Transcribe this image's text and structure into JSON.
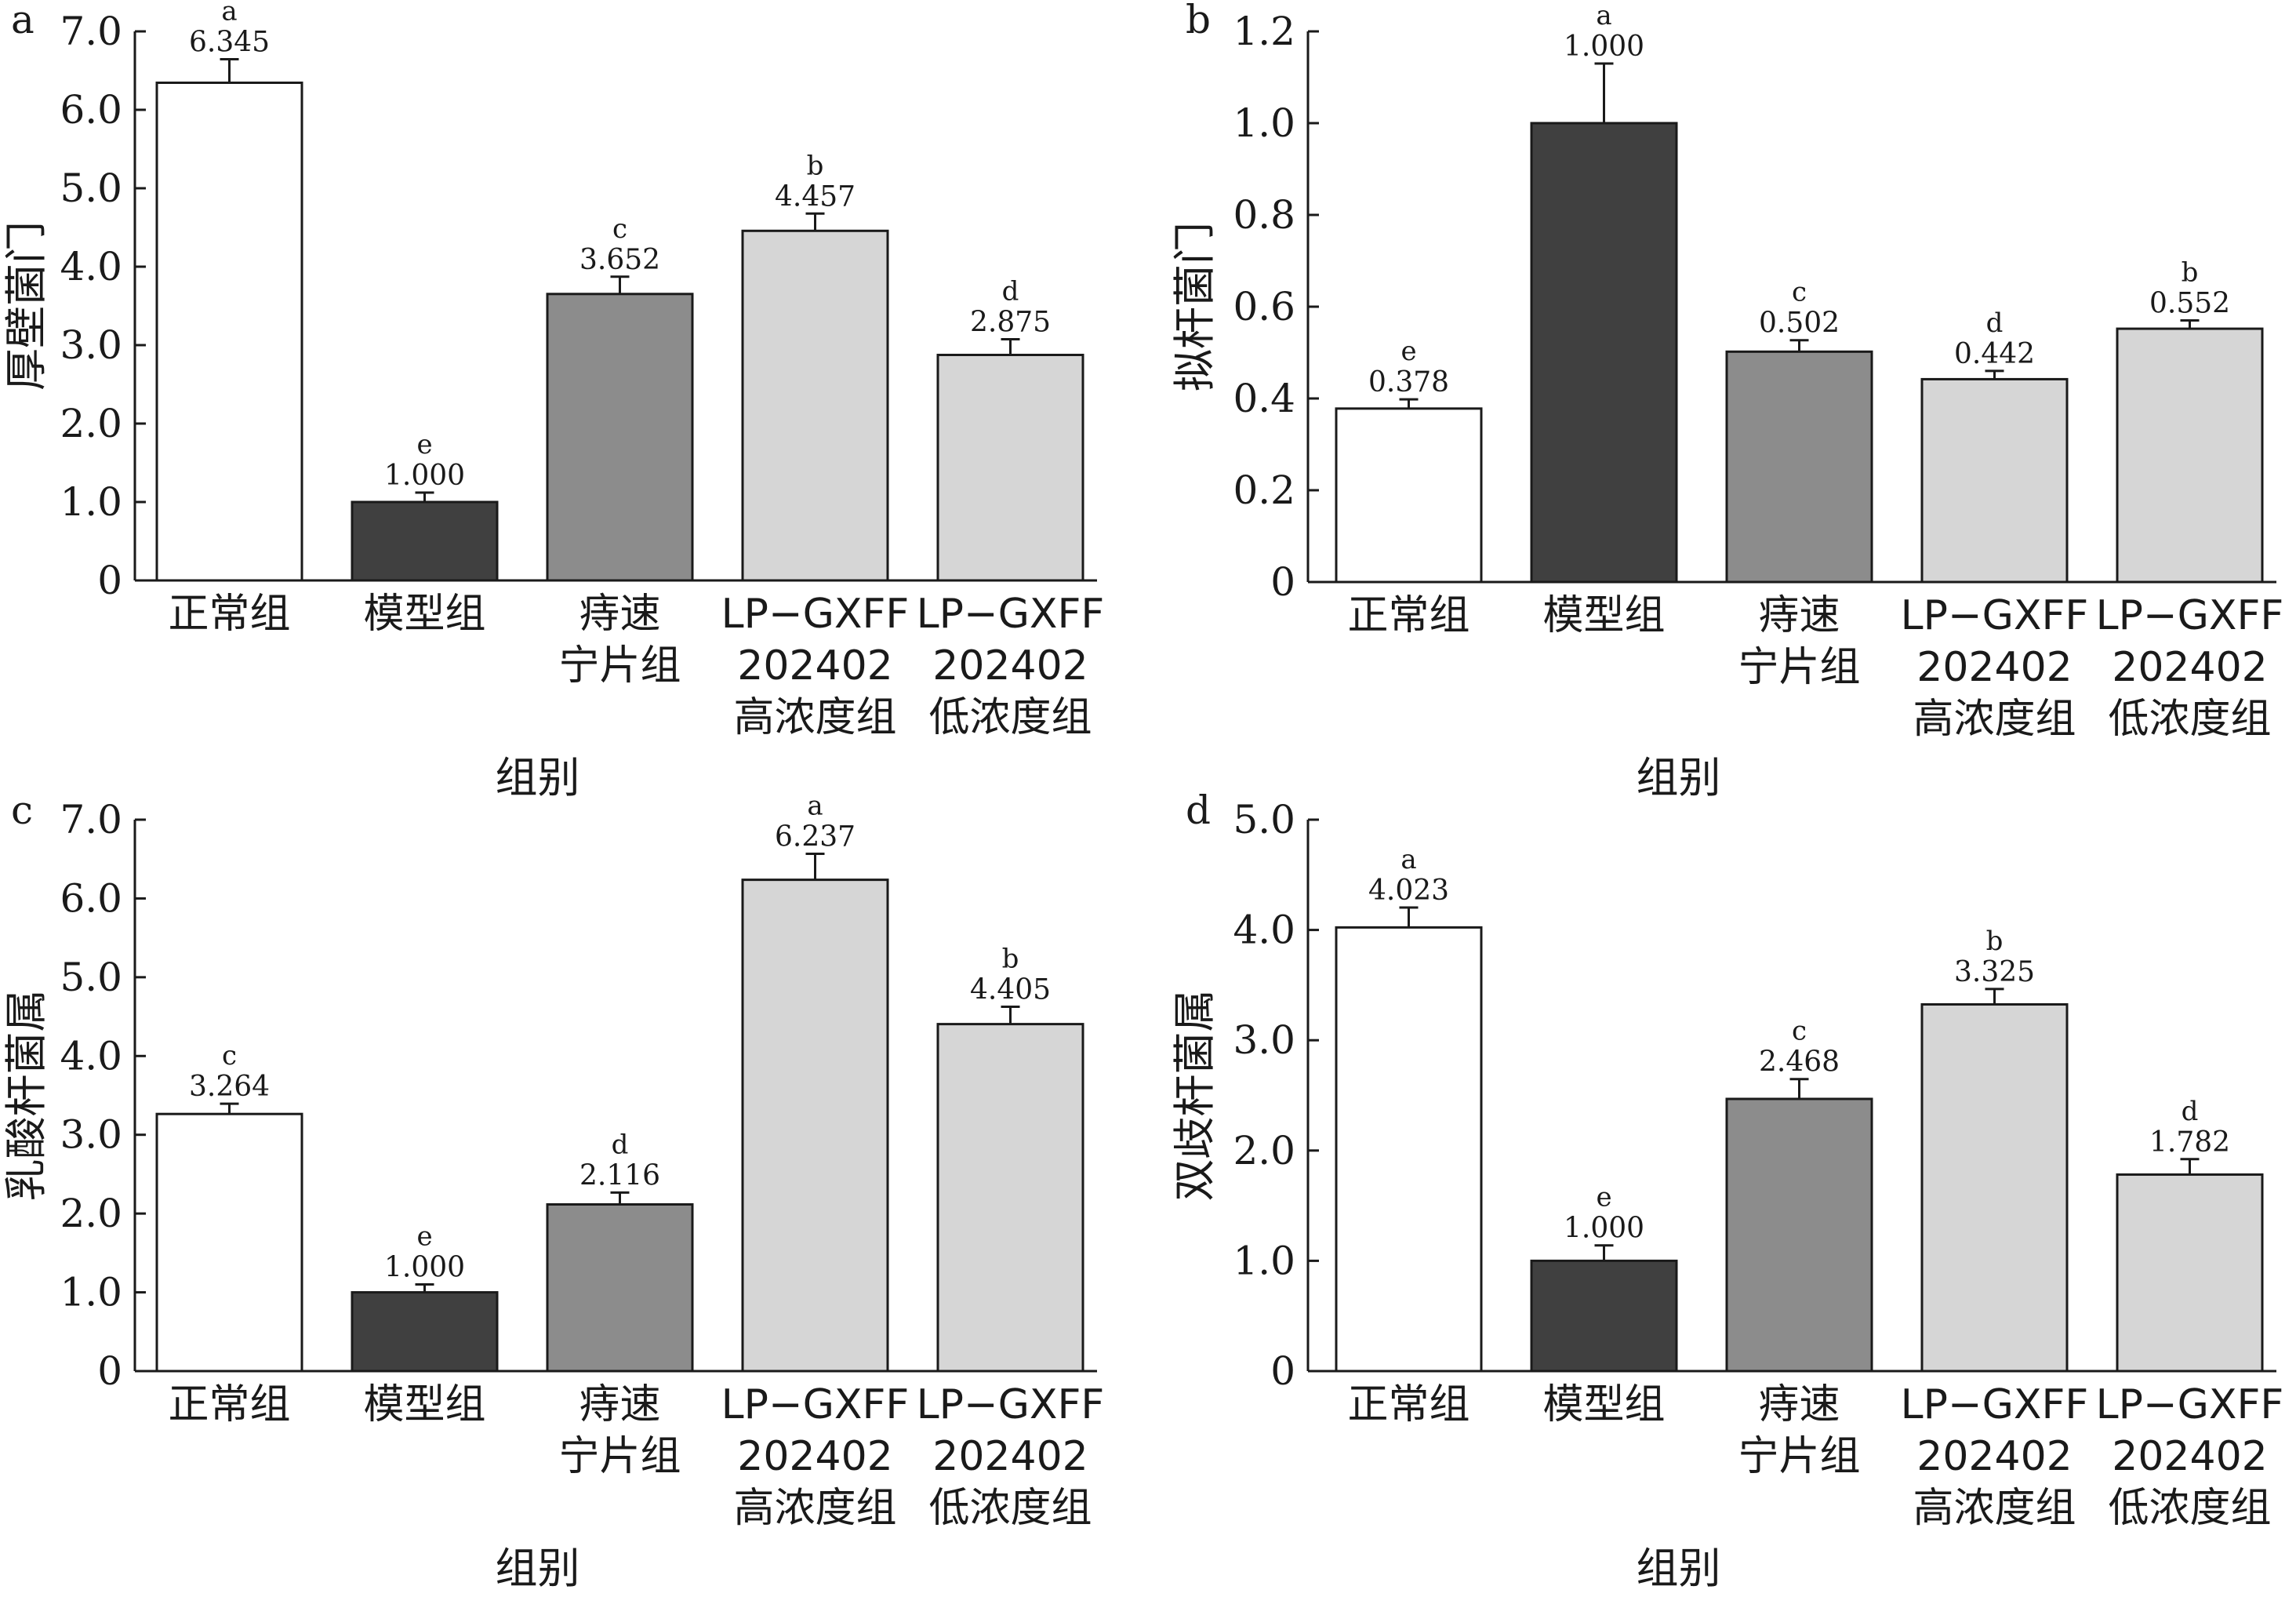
{
  "categories": [
    [
      "正常组"
    ],
    [
      "模型组"
    ],
    [
      "痔速",
      "宁片组"
    ],
    [
      "LP−GXFF",
      "202402",
      "高浓度组"
    ],
    [
      "LP−GXFF",
      "202402",
      "低浓度组"
    ]
  ],
  "bar_fills": [
    "#ffffff",
    "#404040",
    "#8c8c8c",
    "#d6d6d6",
    "#d6d6d6"
  ],
  "chart_data": [
    {
      "type": "bar",
      "panel_label": "a",
      "xlabel": "组别",
      "ylabel": "厚壁菌门",
      "ylim": [
        0,
        7
      ],
      "yticks": [
        0,
        1,
        2,
        3,
        4,
        5,
        6,
        7
      ],
      "ytick_labels": [
        "0",
        "1.0",
        "2.0",
        "3.0",
        "4.0",
        "5.0",
        "6.0",
        "7.0"
      ],
      "values": [
        6.345,
        1.0,
        3.652,
        4.457,
        2.875
      ],
      "value_labels": [
        "6.345",
        "1.000",
        "3.652",
        "4.457",
        "2.875"
      ],
      "errors": [
        0.3,
        0.12,
        0.22,
        0.22,
        0.2
      ],
      "significance": [
        "a",
        "e",
        "c",
        "b",
        "d"
      ]
    },
    {
      "type": "bar",
      "panel_label": "b",
      "xlabel": "组别",
      "ylabel": "拟杆菌门",
      "ylim": [
        0,
        1.2
      ],
      "yticks": [
        0,
        0.2,
        0.4,
        0.6,
        0.8,
        1.0,
        1.2
      ],
      "ytick_labels": [
        "0",
        "0.2",
        "0.4",
        "0.6",
        "0.8",
        "1.0",
        "1.2"
      ],
      "values": [
        0.378,
        1.0,
        0.502,
        0.442,
        0.552
      ],
      "value_labels": [
        "0.378",
        "1.000",
        "0.502",
        "0.442",
        "0.552"
      ],
      "errors": [
        0.02,
        0.13,
        0.025,
        0.018,
        0.018
      ],
      "significance": [
        "e",
        "a",
        "c",
        "d",
        "b"
      ]
    },
    {
      "type": "bar",
      "panel_label": "c",
      "xlabel": "组别",
      "ylabel": "乳酸杆菌属",
      "ylim": [
        0,
        7
      ],
      "yticks": [
        0,
        1,
        2,
        3,
        4,
        5,
        6,
        7
      ],
      "ytick_labels": [
        "0",
        "1.0",
        "2.0",
        "3.0",
        "4.0",
        "5.0",
        "6.0",
        "7.0"
      ],
      "values": [
        3.264,
        1.0,
        2.116,
        6.237,
        4.405
      ],
      "value_labels": [
        "3.264",
        "1.000",
        "2.116",
        "6.237",
        "4.405"
      ],
      "errors": [
        0.13,
        0.1,
        0.15,
        0.33,
        0.22
      ],
      "significance": [
        "c",
        "e",
        "d",
        "a",
        "b"
      ]
    },
    {
      "type": "bar",
      "panel_label": "d",
      "xlabel": "组别",
      "ylabel": "双歧杆菌属",
      "ylim": [
        0,
        5
      ],
      "yticks": [
        0,
        1,
        2,
        3,
        4,
        5
      ],
      "ytick_labels": [
        "0",
        "1.0",
        "2.0",
        "3.0",
        "4.0",
        "5.0"
      ],
      "values": [
        4.023,
        1.0,
        2.468,
        3.325,
        1.782
      ],
      "value_labels": [
        "4.023",
        "1.000",
        "2.468",
        "3.325",
        "1.782"
      ],
      "errors": [
        0.18,
        0.14,
        0.18,
        0.14,
        0.14
      ],
      "significance": [
        "a",
        "e",
        "c",
        "b",
        "d"
      ]
    }
  ]
}
